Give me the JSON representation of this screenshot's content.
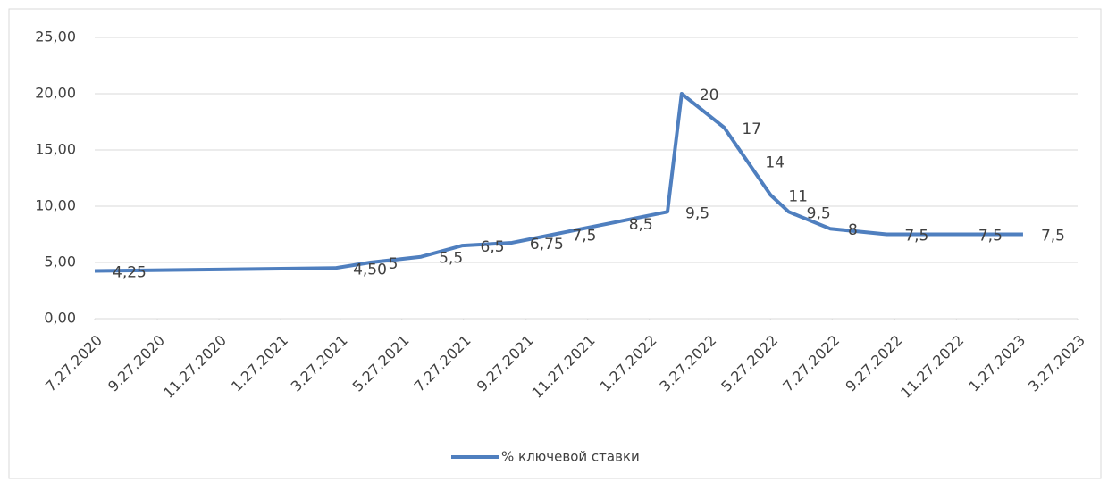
{
  "chart_data": {
    "type": "line",
    "x": [
      "2020-07-27",
      "2021-03-22",
      "2021-04-26",
      "2021-06-15",
      "2021-07-26",
      "2021-09-13",
      "2021-10-25",
      "2021-12-20",
      "2022-02-14",
      "2022-02-28",
      "2022-04-11",
      "2022-05-04",
      "2022-05-27",
      "2022-06-14",
      "2022-07-25",
      "2022-09-19",
      "2022-12-01",
      "2023-02-01"
    ],
    "series": [
      {
        "name": "% ключевой ставки",
        "color": "#4f7fbf",
        "values": [
          4.25,
          4.5,
          5,
          5.5,
          6.5,
          6.75,
          7.5,
          8.5,
          9.5,
          20,
          17,
          14,
          11,
          9.5,
          8,
          7.5,
          7.5,
          7.5
        ],
        "value_labels": [
          "4,25",
          "4,50",
          "5",
          "5,5",
          "6,5",
          "6,75",
          "7,5",
          "8,5",
          "9,5",
          "20",
          "17",
          "14",
          "11",
          "9,5",
          "8",
          "7,5",
          "7,5",
          "7,5"
        ]
      }
    ],
    "xlim": [
      "2020-07-27",
      "2023-03-27"
    ],
    "xticks": [
      {
        "value": "2020-07-27",
        "label": "7.27.2020"
      },
      {
        "value": "2020-09-27",
        "label": "9.27.2020"
      },
      {
        "value": "2020-11-27",
        "label": "11.27.2020"
      },
      {
        "value": "2021-01-27",
        "label": "1.27.2021"
      },
      {
        "value": "2021-03-27",
        "label": "3.27.2021"
      },
      {
        "value": "2021-05-27",
        "label": "5.27.2021"
      },
      {
        "value": "2021-07-27",
        "label": "7.27.2021"
      },
      {
        "value": "2021-09-27",
        "label": "9.27.2021"
      },
      {
        "value": "2021-11-27",
        "label": "11.27.2021"
      },
      {
        "value": "2022-01-27",
        "label": "1.27.2022"
      },
      {
        "value": "2022-03-27",
        "label": "3.27.2022"
      },
      {
        "value": "2022-05-27",
        "label": "5.27.2022"
      },
      {
        "value": "2022-07-27",
        "label": "7.27.2022"
      },
      {
        "value": "2022-09-27",
        "label": "9.27.2022"
      },
      {
        "value": "2022-11-27",
        "label": "11.27.2022"
      },
      {
        "value": "2023-01-27",
        "label": "1.27.2023"
      },
      {
        "value": "2023-03-27",
        "label": "3.27.2023"
      }
    ],
    "ylim": [
      0,
      25
    ],
    "yticks": [
      {
        "value": 0,
        "label": "0,00"
      },
      {
        "value": 5,
        "label": "5,00"
      },
      {
        "value": 10,
        "label": "10,00"
      },
      {
        "value": 15,
        "label": "15,00"
      },
      {
        "value": 20,
        "label": "20,00"
      },
      {
        "value": 25,
        "label": "25,00"
      }
    ],
    "grid": true,
    "legend": "bottom"
  }
}
